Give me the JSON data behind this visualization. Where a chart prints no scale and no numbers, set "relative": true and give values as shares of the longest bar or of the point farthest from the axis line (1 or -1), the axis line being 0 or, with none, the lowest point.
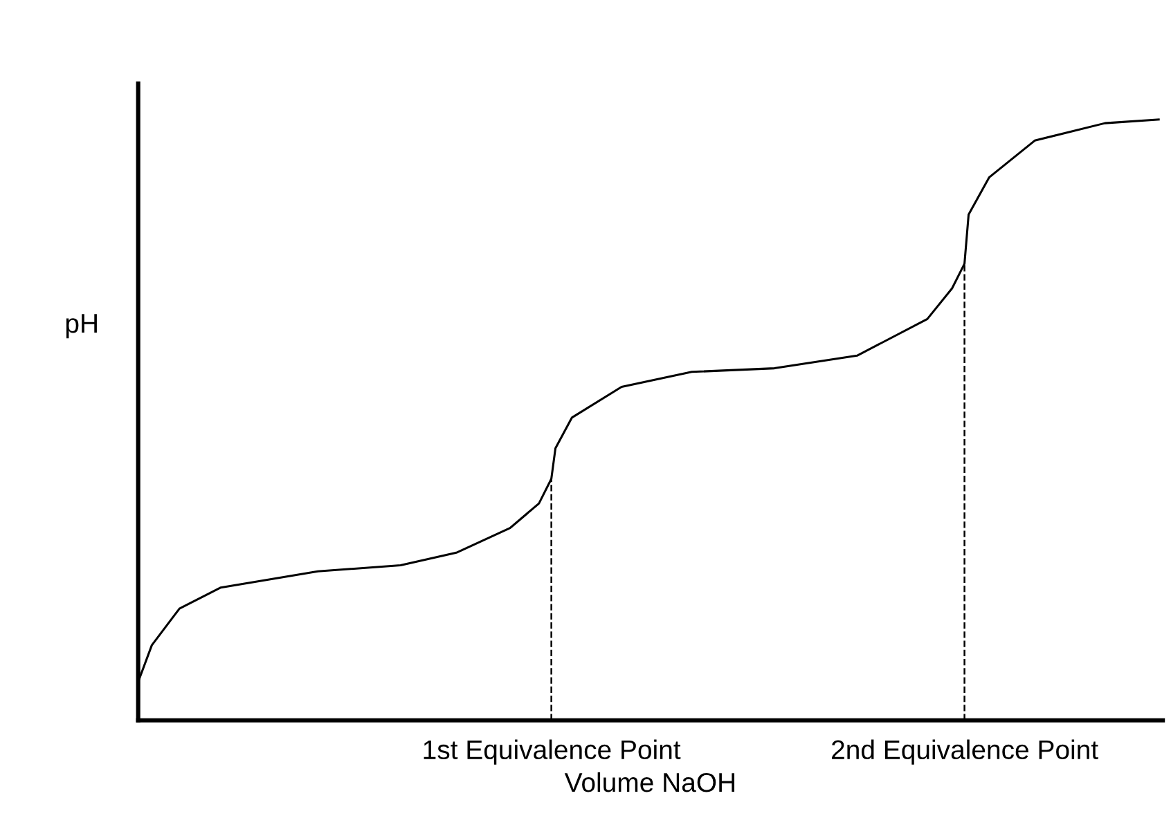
{
  "chart_data": {
    "type": "line",
    "relative": true,
    "xlabel": "Volume NaOH",
    "ylabel": "pH",
    "x": [
      0,
      0.033,
      0.1,
      0.2,
      0.435,
      0.635,
      0.77,
      0.9,
      0.97,
      1.0,
      1.01,
      1.05,
      1.17,
      1.34,
      1.54,
      1.74,
      1.91,
      1.97,
      2.0,
      2.01,
      2.06,
      2.17,
      2.34,
      2.47
    ],
    "series": [
      {
        "color": "#000000",
        "values": [
          0.064,
          0.125,
          0.186,
          0.221,
          0.248,
          0.258,
          0.279,
          0.32,
          0.361,
          0.402,
          0.453,
          0.504,
          0.555,
          0.58,
          0.586,
          0.607,
          0.668,
          0.719,
          0.76,
          0.842,
          0.904,
          0.965,
          0.994,
          1.0
        ]
      }
    ],
    "xlim": [
      0,
      2.48
    ],
    "xticks": [
      {
        "value": 1,
        "label": "1st Equivalence Point"
      },
      {
        "value": 2,
        "label": "2nd Equivalence Point"
      }
    ],
    "ref_lines": [
      {
        "axis": "x",
        "value": 1,
        "line_style": "dashed",
        "color": "#000000"
      },
      {
        "axis": "x",
        "value": 2,
        "line_style": "dashed",
        "color": "#000000"
      }
    ],
    "grid": false,
    "legend": false,
    "marker": "none",
    "line_style": "solid"
  }
}
